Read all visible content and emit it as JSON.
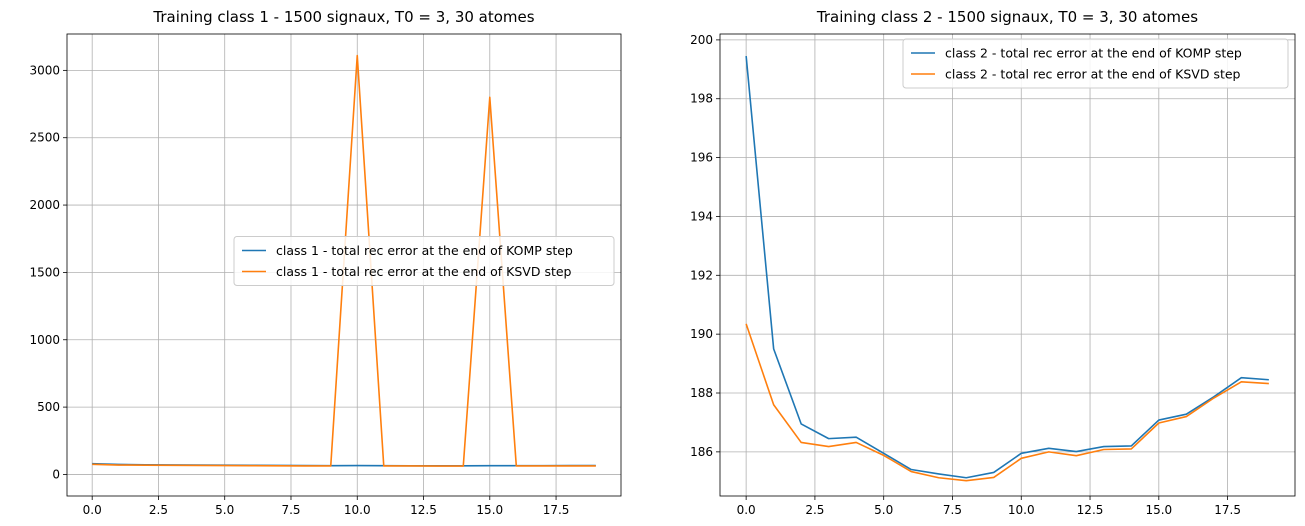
{
  "chart_data": [
    {
      "type": "line",
      "title": "Training class 1 - 1500 signaux, T0 = 3, 30 atomes",
      "xlabel": "",
      "ylabel": "",
      "xlim": [
        -0.95,
        19.95
      ],
      "ylim": [
        -160,
        3270
      ],
      "xticks": [
        0,
        2.5,
        5,
        7.5,
        10,
        12.5,
        15,
        17.5
      ],
      "xtick_labels": [
        "0.0",
        "2.5",
        "5.0",
        "7.5",
        "10.0",
        "12.5",
        "15.0",
        "17.5"
      ],
      "yticks": [
        0,
        500,
        1000,
        1500,
        2000,
        2500,
        3000
      ],
      "ytick_labels": [
        "0",
        "500",
        "1000",
        "1500",
        "2000",
        "2500",
        "3000"
      ],
      "grid": true,
      "legend_position": "center-right",
      "x": [
        0,
        1,
        2,
        3,
        4,
        5,
        6,
        7,
        8,
        9,
        10,
        11,
        12,
        13,
        14,
        15,
        16,
        17,
        18,
        19
      ],
      "series": [
        {
          "name": "class 1 - total rec error at the end of KOMP step",
          "color": "#1f77b4",
          "values": [
            80,
            74,
            72,
            71,
            70,
            69,
            68,
            67,
            66,
            65,
            66,
            65,
            64,
            64,
            64,
            65,
            65,
            65,
            66,
            66
          ]
        },
        {
          "name": "class 1 - total rec error at the end of KSVD step",
          "color": "#ff7f0e",
          "values": [
            75,
            70,
            69,
            68,
            67,
            66,
            65,
            64,
            63,
            63,
            3110,
            63,
            63,
            62,
            62,
            2800,
            63,
            63,
            63,
            63
          ]
        }
      ]
    },
    {
      "type": "line",
      "title": "Training class 2 - 1500 signaux, T0 = 3, 30 atomes",
      "xlabel": "",
      "ylabel": "",
      "xlim": [
        -0.95,
        19.95
      ],
      "ylim": [
        184.5,
        200.2
      ],
      "xticks": [
        0,
        2.5,
        5,
        7.5,
        10,
        12.5,
        15,
        17.5
      ],
      "xtick_labels": [
        "0.0",
        "2.5",
        "5.0",
        "7.5",
        "10.0",
        "12.5",
        "15.0",
        "17.5"
      ],
      "yticks": [
        186,
        188,
        190,
        192,
        194,
        196,
        198,
        200
      ],
      "ytick_labels": [
        "186",
        "188",
        "190",
        "192",
        "194",
        "196",
        "198",
        "200"
      ],
      "grid": true,
      "legend_position": "top-right",
      "x": [
        0,
        1,
        2,
        3,
        4,
        5,
        6,
        7,
        8,
        9,
        10,
        11,
        12,
        13,
        14,
        15,
        16,
        17,
        18,
        19
      ],
      "series": [
        {
          "name": "class 2 - total rec error at the end of KOMP step",
          "color": "#1f77b4",
          "values": [
            199.45,
            189.5,
            186.95,
            186.45,
            186.5,
            185.95,
            185.4,
            185.25,
            185.12,
            185.3,
            185.95,
            186.12,
            186.01,
            186.18,
            186.2,
            187.08,
            187.28,
            187.87,
            188.52,
            188.45
          ]
        },
        {
          "name": "class 2 - total rec error at the end of KSVD step",
          "color": "#ff7f0e",
          "values": [
            190.35,
            187.6,
            186.32,
            186.18,
            186.32,
            185.88,
            185.33,
            185.12,
            185.02,
            185.13,
            185.78,
            186.0,
            185.87,
            186.08,
            186.1,
            186.98,
            187.2,
            187.83,
            188.38,
            188.32
          ]
        }
      ]
    }
  ]
}
